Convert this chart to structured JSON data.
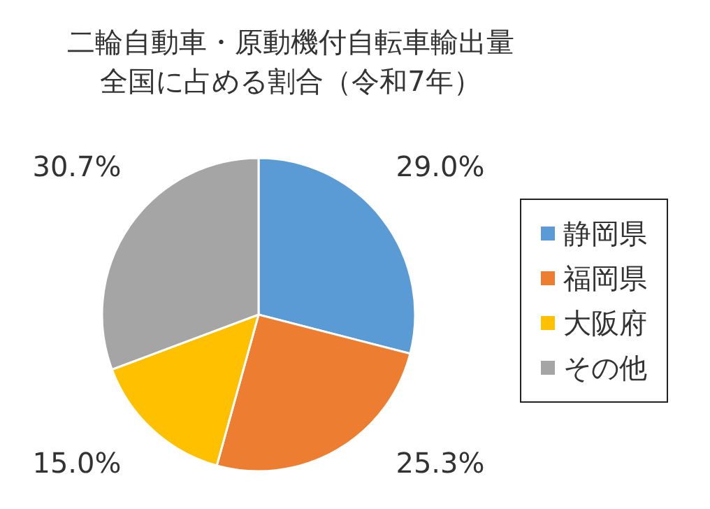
{
  "chart_data": {
    "type": "pie",
    "title": "二輪自動車・原動機付自転車輸出量",
    "subtitle": "全国に占める割合（令和7年）",
    "categories": [
      "静岡県",
      "福岡県",
      "大阪府",
      "その他"
    ],
    "values": [
      29.0,
      25.3,
      15.0,
      30.7
    ],
    "colors": [
      "#5b9bd5",
      "#ed7d31",
      "#ffc000",
      "#a5a5a5"
    ],
    "value_labels": [
      "29.0%",
      "25.3%",
      "15.0%",
      "30.7%"
    ],
    "legend": "right"
  }
}
